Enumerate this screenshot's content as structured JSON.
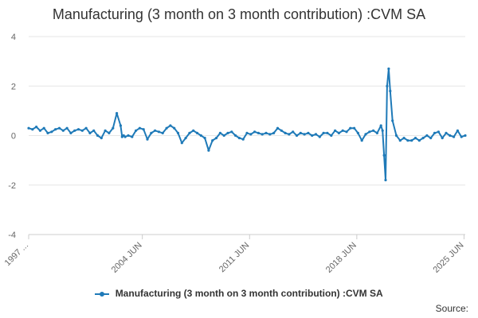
{
  "chart_data": {
    "type": "line",
    "title": "Manufacturing (3 month on 3 month contribution) :CVM SA",
    "xlabel": "",
    "ylabel": "",
    "ylim": [
      -4,
      4
    ],
    "yticks": [
      4,
      2,
      0,
      -2,
      -4
    ],
    "xlim": [
      1997.0,
      2025.5
    ],
    "xticks": [
      {
        "label": "1997 ...",
        "x": 1997.0
      },
      {
        "label": "2004 JUN",
        "x": 2004.42
      },
      {
        "label": "2011 JUN",
        "x": 2011.42
      },
      {
        "label": "2018 JUN",
        "x": 2018.42
      },
      {
        "label": "2025 JUN",
        "x": 2025.42
      }
    ],
    "grid": true,
    "legend_position": "bottom",
    "series": [
      {
        "name": "Manufacturing (3 month on 3 month contribution) :CVM SA",
        "color": "#1f7ab8",
        "x": [
          1997.0,
          1997.25,
          1997.5,
          1997.75,
          1998.0,
          1998.25,
          1998.5,
          1998.75,
          1999.0,
          1999.25,
          1999.5,
          1999.75,
          2000.0,
          2000.25,
          2000.5,
          2000.75,
          2001.0,
          2001.25,
          2001.5,
          2001.75,
          2002.0,
          2002.25,
          2002.5,
          2002.75,
          2003.0,
          2003.1,
          2003.2,
          2003.3,
          2003.5,
          2003.75,
          2004.0,
          2004.25,
          2004.5,
          2004.75,
          2005.0,
          2005.25,
          2005.5,
          2005.75,
          2006.0,
          2006.25,
          2006.5,
          2006.75,
          2007.0,
          2007.25,
          2007.5,
          2007.75,
          2008.0,
          2008.25,
          2008.5,
          2008.75,
          2009.0,
          2009.25,
          2009.5,
          2009.75,
          2010.0,
          2010.25,
          2010.5,
          2010.75,
          2011.0,
          2011.25,
          2011.5,
          2011.75,
          2012.0,
          2012.25,
          2012.5,
          2012.75,
          2013.0,
          2013.25,
          2013.5,
          2013.75,
          2014.0,
          2014.25,
          2014.5,
          2014.75,
          2015.0,
          2015.25,
          2015.5,
          2015.75,
          2016.0,
          2016.25,
          2016.5,
          2016.75,
          2017.0,
          2017.25,
          2017.5,
          2017.75,
          2018.0,
          2018.25,
          2018.5,
          2018.75,
          2019.0,
          2019.25,
          2019.5,
          2019.75,
          2020.0,
          2020.1,
          2020.2,
          2020.3,
          2020.4,
          2020.5,
          2020.6,
          2020.75,
          2021.0,
          2021.25,
          2021.5,
          2021.75,
          2022.0,
          2022.25,
          2022.5,
          2022.75,
          2023.0,
          2023.25,
          2023.5,
          2023.75,
          2024.0,
          2024.25,
          2024.5,
          2024.75,
          2025.0,
          2025.25,
          2025.5
        ],
        "values": [
          0.3,
          0.25,
          0.35,
          0.2,
          0.3,
          0.1,
          0.15,
          0.25,
          0.3,
          0.2,
          0.3,
          0.1,
          0.2,
          0.25,
          0.2,
          0.3,
          0.1,
          0.2,
          0.0,
          -0.1,
          0.2,
          0.1,
          0.3,
          0.9,
          0.4,
          -0.05,
          0.0,
          -0.05,
          0.0,
          -0.05,
          0.2,
          0.3,
          0.25,
          -0.15,
          0.1,
          0.2,
          0.15,
          0.1,
          0.3,
          0.4,
          0.3,
          0.1,
          -0.3,
          -0.1,
          0.1,
          0.2,
          0.1,
          0.0,
          -0.1,
          -0.6,
          -0.2,
          -0.1,
          0.1,
          0.0,
          0.1,
          0.15,
          0.0,
          -0.1,
          -0.15,
          0.1,
          0.05,
          0.15,
          0.1,
          0.05,
          0.1,
          0.05,
          0.1,
          0.3,
          0.2,
          0.1,
          0.05,
          0.15,
          0.0,
          0.1,
          0.05,
          0.1,
          0.0,
          0.05,
          -0.05,
          0.1,
          0.1,
          0.0,
          0.2,
          0.1,
          0.2,
          0.15,
          0.3,
          0.3,
          0.1,
          -0.2,
          0.05,
          0.15,
          0.2,
          0.1,
          0.4,
          0.2,
          -0.8,
          -1.8,
          2.0,
          2.7,
          1.8,
          0.6,
          0.0,
          -0.2,
          -0.1,
          -0.2,
          -0.2,
          -0.1,
          -0.2,
          -0.1,
          0.0,
          -0.1,
          0.1,
          0.15,
          -0.1,
          0.1,
          0.0,
          -0.05,
          0.2,
          -0.05,
          0.0
        ]
      }
    ]
  },
  "footer": {
    "source_label": "Source:"
  }
}
